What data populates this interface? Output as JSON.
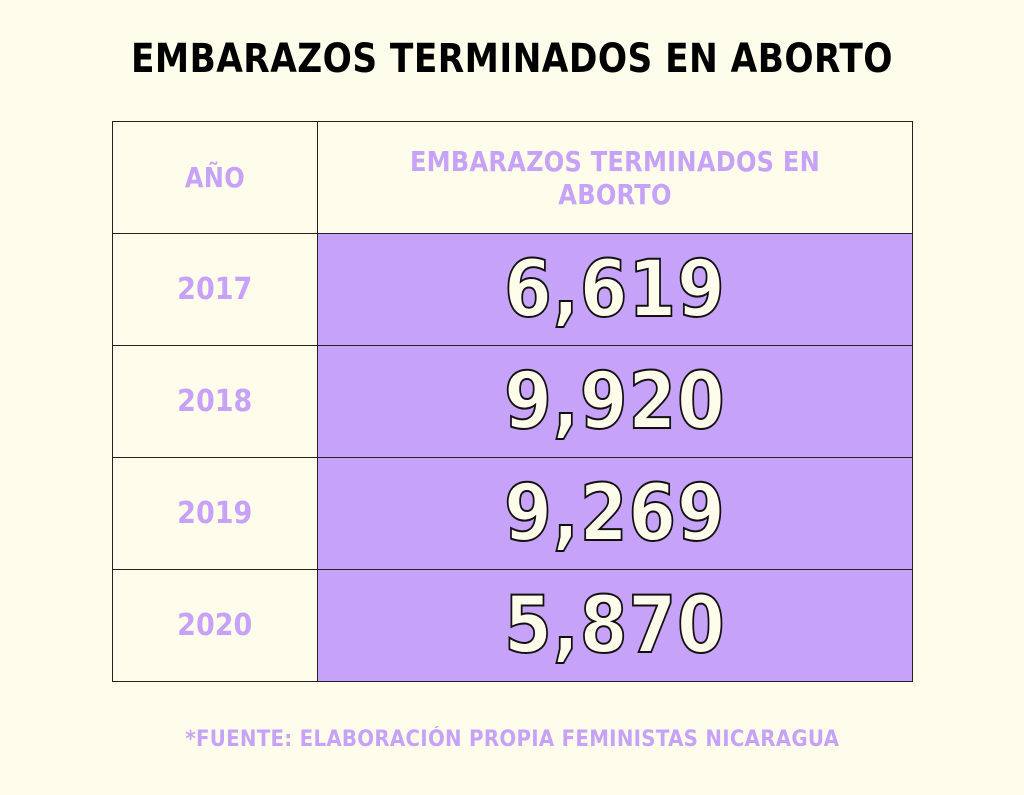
{
  "title": "EMBARAZOS TERMINADOS EN ABORTO",
  "source": "*FUENTE: ELABORACIÓN PROPIA FEMINISTAS NICARAGUA",
  "colors": {
    "background": "#FEFDEB",
    "accent": "#C6A2F8",
    "text": "#000000"
  },
  "chart_data": {
    "type": "table",
    "title": "EMBARAZOS TERMINADOS EN ABORTO",
    "columns": [
      "AÑO",
      "EMBARAZOS TERMINADOS EN ABORTO"
    ],
    "rows": [
      {
        "year": "2017",
        "value": "6,619"
      },
      {
        "year": "2018",
        "value": "9,920"
      },
      {
        "year": "2019",
        "value": "9,269"
      },
      {
        "year": "2020",
        "value": "5,870"
      }
    ]
  }
}
